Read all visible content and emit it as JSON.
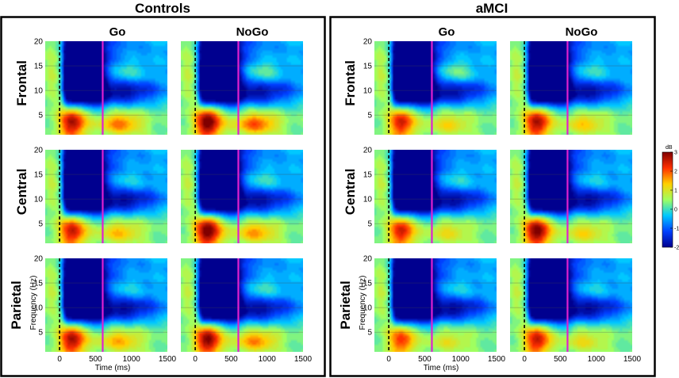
{
  "chart_data": {
    "type": "heatmap",
    "groups": [
      "Controls",
      "aMCI"
    ],
    "conditions": [
      "Go",
      "NoGo"
    ],
    "regions": [
      "Frontal",
      "Central",
      "Parietal"
    ],
    "xlabel": "Time (ms)",
    "ylabel": "Frequency (Hz)",
    "xlim": [
      -200,
      1500
    ],
    "ylim": [
      1,
      20
    ],
    "xticks": [
      0,
      500,
      1000,
      1500
    ],
    "xtick_labels": [
      "0",
      "500",
      "1000",
      "1500"
    ],
    "yticks": [
      5,
      10,
      15,
      20
    ],
    "ytick_labels": [
      "5",
      "10",
      "15",
      "20"
    ],
    "stimulus_onset_ms": 0,
    "reference_line_ms": 600,
    "colorbar": {
      "label": "dB",
      "range": [
        -2,
        3
      ],
      "ticks": [
        -2,
        -1,
        0,
        1,
        2,
        3
      ],
      "tick_labels": [
        "-2",
        "-1",
        "0",
        "1",
        "2",
        "3"
      ],
      "colors": [
        "#00008f",
        "#0040ff",
        "#00c8ff",
        "#a0ff60",
        "#ffd000",
        "#ff3000",
        "#800000"
      ]
    },
    "colors": {
      "onset_line": "#000000",
      "reference_line": "#e020d0",
      "frame": "#000000"
    },
    "panels": [
      {
        "group": "Controls",
        "condition": "Go",
        "region": "Frontal",
        "theta_peak_db": 2.6,
        "theta_late_db": 1.6,
        "alpha_suppression_db": -2.0,
        "beta_late_db": 1.0
      },
      {
        "group": "Controls",
        "condition": "NoGo",
        "region": "Frontal",
        "theta_peak_db": 3.0,
        "theta_late_db": 1.8,
        "alpha_suppression_db": -2.0,
        "beta_late_db": 1.2
      },
      {
        "group": "Controls",
        "condition": "Go",
        "region": "Central",
        "theta_peak_db": 2.4,
        "theta_late_db": 1.2,
        "alpha_suppression_db": -2.0,
        "beta_late_db": 0.8
      },
      {
        "group": "Controls",
        "condition": "NoGo",
        "region": "Central",
        "theta_peak_db": 3.0,
        "theta_late_db": 1.4,
        "alpha_suppression_db": -2.0,
        "beta_late_db": 1.0
      },
      {
        "group": "Controls",
        "condition": "Go",
        "region": "Parietal",
        "theta_peak_db": 2.6,
        "theta_late_db": 1.3,
        "alpha_suppression_db": -2.0,
        "beta_late_db": 0.8
      },
      {
        "group": "Controls",
        "condition": "NoGo",
        "region": "Parietal",
        "theta_peak_db": 2.8,
        "theta_late_db": 1.5,
        "alpha_suppression_db": -2.0,
        "beta_late_db": 1.0
      },
      {
        "group": "aMCI",
        "condition": "Go",
        "region": "Frontal",
        "theta_peak_db": 2.3,
        "theta_late_db": 1.0,
        "alpha_suppression_db": -2.0,
        "beta_late_db": 1.3
      },
      {
        "group": "aMCI",
        "condition": "NoGo",
        "region": "Frontal",
        "theta_peak_db": 2.6,
        "theta_late_db": 1.1,
        "alpha_suppression_db": -2.0,
        "beta_late_db": 1.0
      },
      {
        "group": "aMCI",
        "condition": "Go",
        "region": "Central",
        "theta_peak_db": 2.3,
        "theta_late_db": 0.9,
        "alpha_suppression_db": -2.0,
        "beta_late_db": 0.9
      },
      {
        "group": "aMCI",
        "condition": "NoGo",
        "region": "Central",
        "theta_peak_db": 2.9,
        "theta_late_db": 1.0,
        "alpha_suppression_db": -2.0,
        "beta_late_db": 0.8
      },
      {
        "group": "aMCI",
        "condition": "Go",
        "region": "Parietal",
        "theta_peak_db": 2.0,
        "theta_late_db": 0.8,
        "alpha_suppression_db": -2.0,
        "beta_late_db": 0.8
      },
      {
        "group": "aMCI",
        "condition": "NoGo",
        "region": "Parietal",
        "theta_peak_db": 2.4,
        "theta_late_db": 0.9,
        "alpha_suppression_db": -2.0,
        "beta_late_db": 0.8
      }
    ]
  }
}
